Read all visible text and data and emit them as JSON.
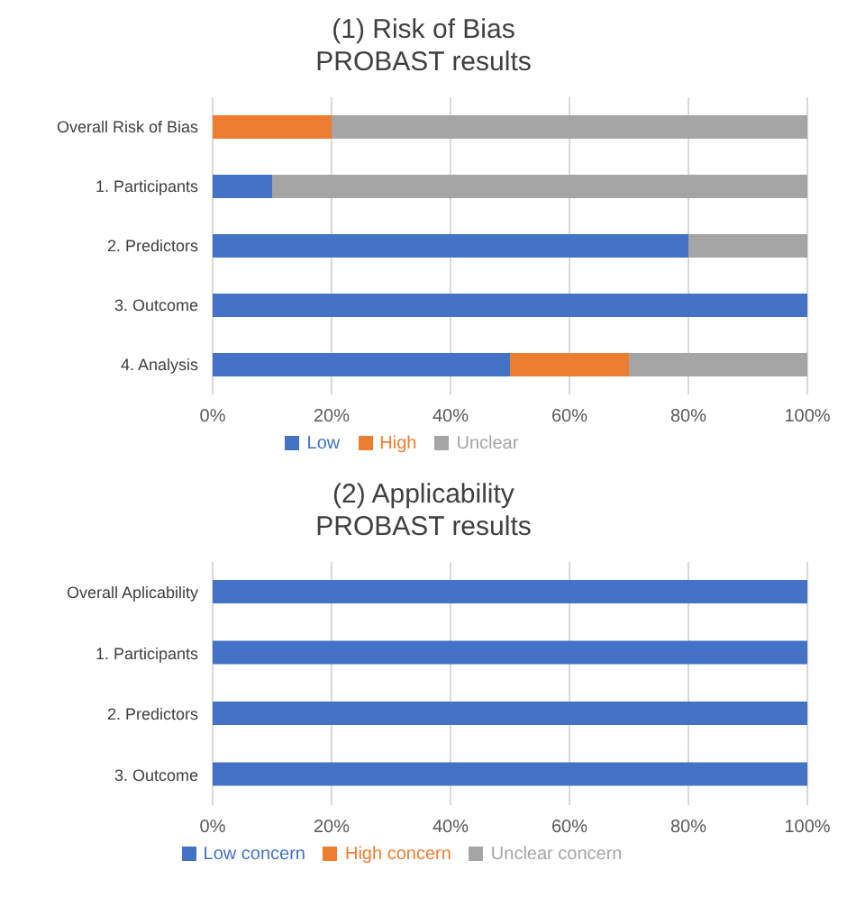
{
  "chart_data": [
    {
      "type": "bar",
      "title": "(1) Risk of Bias",
      "subtitle": "PROBAST results",
      "orientation": "horizontal",
      "stacked": true,
      "categories": [
        "Overall Risk of Bias",
        "1. Participants",
        "2. Predictors",
        "3. Outcome",
        "4. Analysis"
      ],
      "series": [
        {
          "name": "Low",
          "color": "#4472c4",
          "values": [
            0,
            10,
            80,
            100,
            50
          ]
        },
        {
          "name": "High",
          "color": "#ed7d31",
          "values": [
            20,
            0,
            0,
            0,
            20
          ]
        },
        {
          "name": "Unclear",
          "color": "#a5a5a5",
          "values": [
            80,
            90,
            20,
            0,
            30
          ]
        }
      ],
      "xlim": [
        0,
        100
      ],
      "xticks": [
        {
          "value": 0,
          "label": "0%"
        },
        {
          "value": 20,
          "label": "20%"
        },
        {
          "value": 40,
          "label": "40%"
        },
        {
          "value": 60,
          "label": "60%"
        },
        {
          "value": 80,
          "label": "80%"
        },
        {
          "value": 100,
          "label": "100%"
        }
      ],
      "grid": "x",
      "legend": "bottom"
    },
    {
      "type": "bar",
      "title": "(2) Applicability",
      "subtitle": "PROBAST results",
      "orientation": "horizontal",
      "stacked": true,
      "categories": [
        "Overall Aplicability",
        "1. Participants",
        "2. Predictors",
        "3. Outcome"
      ],
      "series": [
        {
          "name": "Low concern",
          "color": "#4472c4",
          "values": [
            100,
            100,
            100,
            100
          ]
        },
        {
          "name": "High concern",
          "color": "#ed7d31",
          "values": [
            0,
            0,
            0,
            0
          ]
        },
        {
          "name": "Unclear concern",
          "color": "#a5a5a5",
          "values": [
            0,
            0,
            0,
            0
          ]
        }
      ],
      "xlim": [
        0,
        100
      ],
      "xticks": [
        {
          "value": 0,
          "label": "0%"
        },
        {
          "value": 20,
          "label": "20%"
        },
        {
          "value": 40,
          "label": "40%"
        },
        {
          "value": 60,
          "label": "60%"
        },
        {
          "value": 80,
          "label": "80%"
        },
        {
          "value": 100,
          "label": "100%"
        }
      ],
      "grid": "x",
      "legend": "bottom"
    }
  ]
}
